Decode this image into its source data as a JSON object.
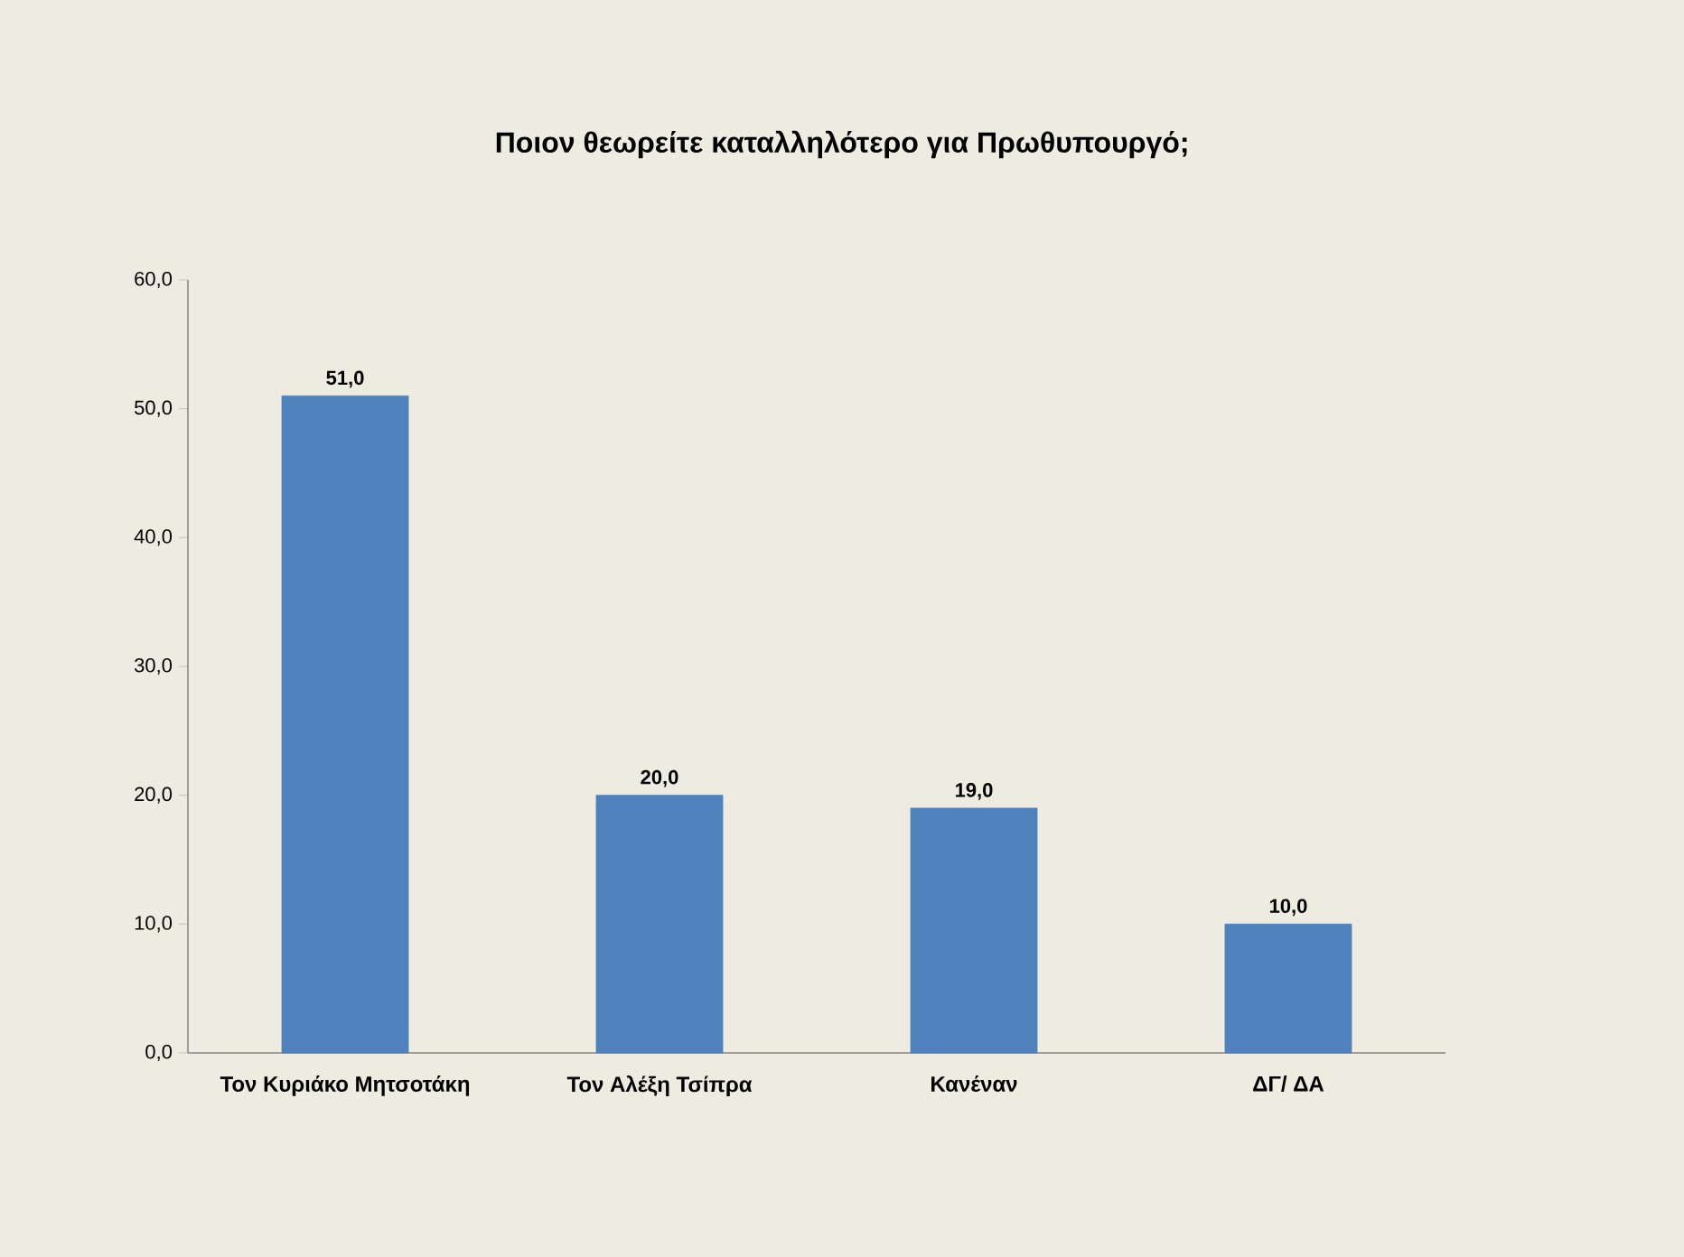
{
  "chart_data": {
    "type": "bar",
    "title": "Ποιον θεωρείτε καταλληλότερο για Πρωθυπουργό;",
    "categories": [
      "Τον Κυριάκο Μητσοτάκη",
      "Τον Αλέξη Τσίπρα",
      "Κανέναν",
      "ΔΓ/ ΔΑ"
    ],
    "values": [
      51,
      20,
      19,
      10
    ],
    "color": "#4f81bd",
    "value_labels": [
      "51,0",
      "20,0",
      "19,0",
      "10,0"
    ],
    "ylim": [
      0,
      60
    ],
    "yticks": [
      {
        "value": 0,
        "label": "0,0"
      },
      {
        "value": 10,
        "label": "10,0"
      },
      {
        "value": 20,
        "label": "20,0"
      },
      {
        "value": 30,
        "label": "30,0"
      },
      {
        "value": 40,
        "label": "40,0"
      },
      {
        "value": 50,
        "label": "50,0"
      },
      {
        "value": 60,
        "label": "60,0"
      }
    ]
  }
}
